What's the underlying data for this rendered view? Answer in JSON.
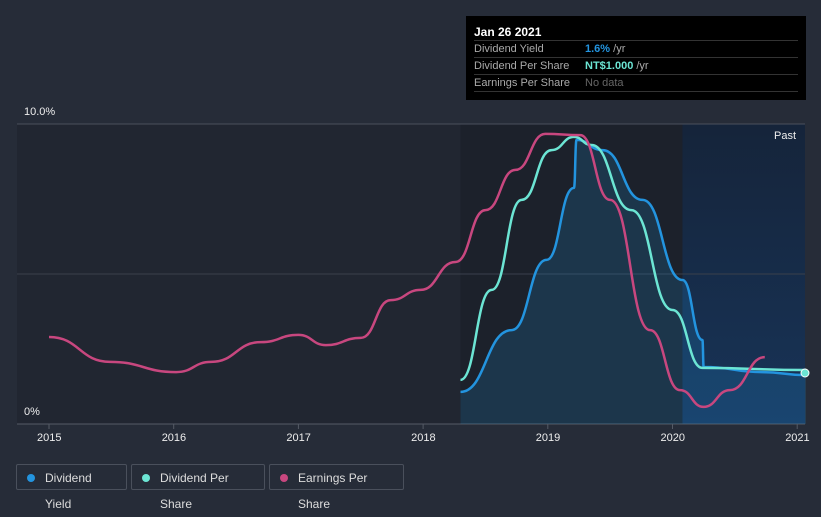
{
  "tooltip": {
    "date": "Jan 26 2021",
    "rows": [
      {
        "label": "Dividend Yield",
        "value": "1.6%",
        "unit": " /yr",
        "color": "#2394df"
      },
      {
        "label": "Dividend Per Share",
        "value": "NT$1.000",
        "unit": " /yr",
        "color": "#6ce5d4"
      },
      {
        "label": "Earnings Per Share",
        "value": "No data",
        "unit": "",
        "color": "#777777"
      }
    ]
  },
  "chart_data": {
    "type": "line",
    "y_tick_labels": [
      "10.0%",
      "0%"
    ],
    "ylim": [
      0,
      10
    ],
    "xlim": [
      2014.75,
      2021.05
    ],
    "x_tick_labels": [
      "2015",
      "2016",
      "2017",
      "2018",
      "2019",
      "2020",
      "2021"
    ],
    "x_ticks": [
      2015,
      2016,
      2017,
      2018,
      2019,
      2020,
      2021
    ],
    "region_label": "Past",
    "past_region_start": 2020.08,
    "series": [
      {
        "name": "Dividend Yield",
        "color": "#2394df",
        "fill": true,
        "x": [
          2018.3,
          2018.71,
          2018.99,
          2019.21,
          2019.23,
          2019.44,
          2019.76,
          2020.08,
          2020.24,
          2020.25,
          2020.72,
          2021.07
        ],
        "y": [
          1.07,
          3.13,
          5.47,
          7.87,
          9.47,
          9.13,
          7.47,
          4.8,
          2.8,
          1.9,
          1.73,
          1.63
        ]
      },
      {
        "name": "Dividend Per Share",
        "color": "#6ce5d4",
        "x": [
          2018.3,
          2018.55,
          2018.79,
          2019.03,
          2019.21,
          2019.35,
          2019.67,
          2020.0,
          2020.24,
          2021.07
        ],
        "y": [
          1.47,
          4.47,
          7.47,
          9.13,
          9.57,
          9.3,
          7.13,
          3.8,
          1.87,
          1.8
        ]
      },
      {
        "name": "Earnings Per Share",
        "color": "#c8477f",
        "x": [
          2015,
          2015.49,
          2016.02,
          2016.3,
          2016.7,
          2017.0,
          2017.22,
          2017.5,
          2017.74,
          2017.98,
          2018.26,
          2018.5,
          2018.74,
          2018.98,
          2019.26,
          2019.5,
          2019.82,
          2020.06,
          2020.25,
          2020.46,
          2020.74
        ],
        "y": [
          2.9,
          2.07,
          1.73,
          2.07,
          2.73,
          2.97,
          2.63,
          2.87,
          4.13,
          4.47,
          5.4,
          7.13,
          8.47,
          9.67,
          9.63,
          7.47,
          3.13,
          1.13,
          0.57,
          1.13,
          2.23
        ]
      }
    ]
  }
}
